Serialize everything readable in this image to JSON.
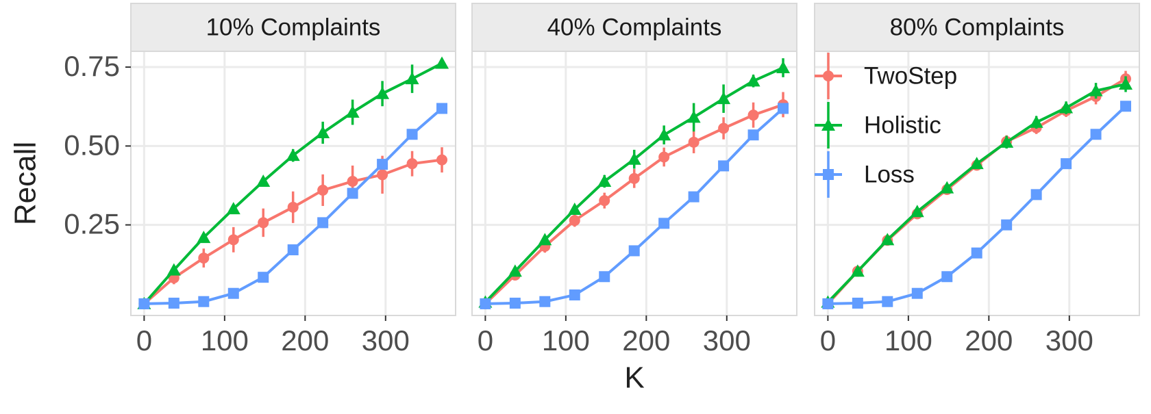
{
  "chart_data": [
    {
      "type": "line",
      "title": "10% Complaints",
      "ylabel": "Recall",
      "x": [
        0,
        37,
        74,
        111,
        148,
        185,
        222,
        259,
        296,
        333,
        370
      ],
      "xlim": [
        -16.5,
        387
      ],
      "xticks": [
        0,
        100,
        200,
        300
      ],
      "ylim": [
        -0.037,
        0.8
      ],
      "yticks": [
        0.25,
        {
          "value": 0.5,
          "label": "0.50"
        },
        0.75
      ],
      "grid": true,
      "series": [
        {
          "name": "TwoStep",
          "color": "#F8766D",
          "marker": "circle",
          "values": [
            0,
            0.082,
            0.145,
            0.203,
            0.257,
            0.306,
            0.36,
            0.388,
            0.409,
            0.444,
            0.456
          ],
          "errors": [
            0.01,
            0.02,
            0.03,
            0.04,
            0.045,
            0.05,
            0.05,
            0.05,
            0.06,
            0.04,
            0.04
          ]
        },
        {
          "name": "Holistic",
          "color": "#00BA38",
          "marker": "triangle",
          "values": [
            0,
            0.107,
            0.21,
            0.301,
            0.388,
            0.47,
            0.542,
            0.607,
            0.666,
            0.713,
            0.762
          ],
          "errors": [
            0.01,
            0.015,
            0.015,
            0.015,
            0.015,
            0.02,
            0.035,
            0.04,
            0.04,
            0.045,
            0.015
          ]
        },
        {
          "name": "Loss",
          "color": "#619CFF",
          "marker": "square",
          "values": [
            0,
            0.002,
            0.007,
            0.033,
            0.084,
            0.171,
            0.257,
            0.35,
            0.442,
            0.537,
            0.619
          ],
          "errors": [
            0.005,
            0.005,
            0.005,
            0.005,
            0.005,
            0.005,
            0.005,
            0.005,
            0.005,
            0.005,
            0.005
          ]
        }
      ]
    },
    {
      "type": "line",
      "title": "40% Complaints",
      "xlabel": "K",
      "x": [
        0,
        37,
        74,
        111,
        148,
        185,
        222,
        259,
        296,
        333,
        370
      ],
      "xlim": [
        -16.5,
        387
      ],
      "xticks": [
        0,
        100,
        200,
        300
      ],
      "grid": true,
      "series": [
        {
          "name": "TwoStep",
          "color": "#F8766D",
          "marker": "circle",
          "values": [
            0,
            0.091,
            0.182,
            0.264,
            0.327,
            0.397,
            0.465,
            0.512,
            0.556,
            0.598,
            0.631
          ],
          "errors": [
            0.01,
            0.015,
            0.02,
            0.02,
            0.025,
            0.03,
            0.03,
            0.035,
            0.035,
            0.04,
            0.04
          ]
        },
        {
          "name": "Holistic",
          "color": "#00BA38",
          "marker": "triangle",
          "values": [
            0.005,
            0.103,
            0.203,
            0.299,
            0.388,
            0.458,
            0.535,
            0.591,
            0.65,
            0.706,
            0.748
          ],
          "errors": [
            0.01,
            0.01,
            0.015,
            0.015,
            0.02,
            0.03,
            0.03,
            0.045,
            0.045,
            0.02,
            0.03
          ]
        },
        {
          "name": "Loss",
          "color": "#619CFF",
          "marker": "square",
          "values": [
            0,
            0.002,
            0.007,
            0.028,
            0.086,
            0.168,
            0.255,
            0.339,
            0.437,
            0.535,
            0.619
          ],
          "errors": [
            0.005,
            0.005,
            0.005,
            0.005,
            0.005,
            0.005,
            0.005,
            0.005,
            0.005,
            0.005,
            0.005
          ]
        }
      ]
    },
    {
      "type": "line",
      "title": "80% Complaints",
      "legend": "top-left",
      "x": [
        0,
        37,
        74,
        111,
        148,
        185,
        222,
        259,
        296,
        333,
        370
      ],
      "xlim": [
        -16.5,
        387
      ],
      "xticks": [
        0,
        100,
        200,
        300
      ],
      "grid": true,
      "series": [
        {
          "name": "TwoStep",
          "color": "#F8766D",
          "marker": "circle",
          "values": [
            0,
            0.103,
            0.201,
            0.285,
            0.362,
            0.439,
            0.514,
            0.558,
            0.612,
            0.657,
            0.713
          ],
          "errors": [
            0.01,
            0.01,
            0.01,
            0.015,
            0.015,
            0.015,
            0.02,
            0.02,
            0.02,
            0.025,
            0.025
          ]
        },
        {
          "name": "Holistic",
          "color": "#00BA38",
          "marker": "triangle",
          "values": [
            0.005,
            0.103,
            0.203,
            0.292,
            0.367,
            0.444,
            0.512,
            0.575,
            0.621,
            0.675,
            0.696
          ],
          "errors": [
            0.01,
            0.01,
            0.01,
            0.01,
            0.015,
            0.015,
            0.02,
            0.02,
            0.02,
            0.025,
            0.025
          ]
        },
        {
          "name": "Loss",
          "color": "#619CFF",
          "marker": "square",
          "values": [
            0,
            0.002,
            0.007,
            0.033,
            0.086,
            0.161,
            0.25,
            0.346,
            0.444,
            0.537,
            0.626
          ],
          "errors": [
            0.005,
            0.005,
            0.005,
            0.005,
            0.005,
            0.005,
            0.005,
            0.005,
            0.005,
            0.005,
            0.005
          ]
        }
      ]
    }
  ]
}
